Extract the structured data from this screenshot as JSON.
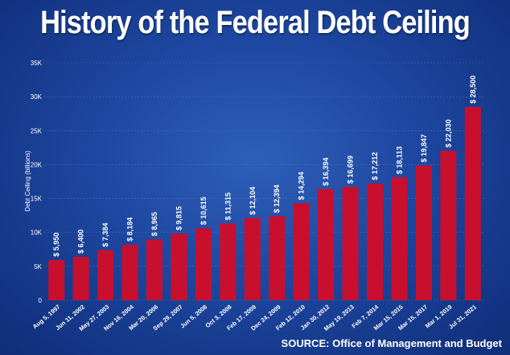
{
  "colors": {
    "bar": "#c8102e",
    "text": "#ffffff",
    "grid": "#5a7cc4",
    "background": "#1d47a0"
  },
  "source": "SOURCE: Office of Management and Budget",
  "chart_data": {
    "type": "bar",
    "title": "History of the Federal Debt Ceiling",
    "ylabel": "Debt Ceiling (billions)",
    "xlabel": "",
    "ylim": [
      0,
      35000
    ],
    "yticks": [
      0,
      5000,
      10000,
      15000,
      20000,
      25000,
      30000,
      35000
    ],
    "ytick_labels": [
      "0",
      "5K",
      "10K",
      "15K",
      "20K",
      "25K",
      "30K",
      "35K"
    ],
    "grid": true,
    "categories": [
      "Aug 5, 1997",
      "Jun 11, 2002",
      "May 27, 2003",
      "Nov 16, 2004",
      "Mar 20, 2006",
      "Sep 29, 2007",
      "Jun 5, 2008",
      "Oct 3, 2008",
      "Feb 17, 2009",
      "Dec 24, 2009",
      "Feb 12, 2010",
      "Jan 30, 2012",
      "May 19, 2013",
      "Feb 7, 2014",
      "Mar 15, 2015",
      "Mar 15, 2017",
      "Mar 1, 2019",
      "Jul 31, 2021"
    ],
    "values": [
      5950,
      6400,
      7384,
      8184,
      8965,
      9815,
      10615,
      11315,
      12104,
      12394,
      14294,
      16394,
      16699,
      17212,
      18113,
      19847,
      22030,
      28500
    ],
    "value_labels": [
      "5,950",
      "6,400",
      "7,384",
      "8,184",
      "8,965",
      "9,815",
      "10,615",
      "11,315",
      "12,104",
      "12,394",
      "14,294",
      "16,394",
      "16,699",
      "17,212",
      "18,113",
      "19,847",
      "22,030",
      "28,500"
    ],
    "value_prefix": "$"
  }
}
